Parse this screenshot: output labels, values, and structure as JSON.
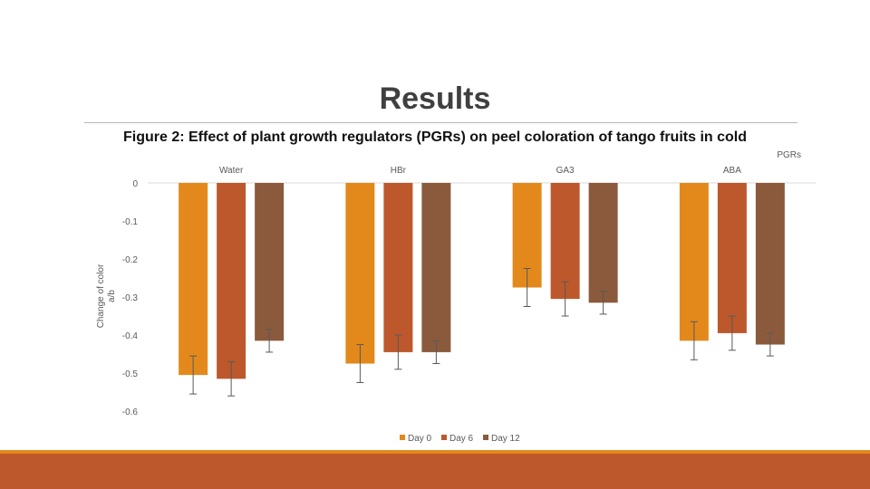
{
  "slide": {
    "title": "Results",
    "caption": "Figure 2: Effect of plant growth regulators (PGRs) on peel coloration of tango fruits in cold"
  },
  "chart_data": {
    "type": "bar",
    "title": "",
    "xlabel": "PGRs",
    "ylabel": "Change of color a/b",
    "ylabel_lines": [
      "Change of color",
      "a/b"
    ],
    "ylim": [
      -0.6,
      0
    ],
    "yticks": [
      0,
      -0.1,
      -0.2,
      -0.3,
      -0.4,
      -0.5,
      -0.6
    ],
    "ytick_labels": [
      "0",
      "-0.1",
      "-0.2",
      "-0.3",
      "-0.4",
      "-0.5",
      "-0.6"
    ],
    "x_axis_position": "top",
    "grid": false,
    "legend_position": "bottom",
    "categories": [
      "Water",
      "HBr",
      "GA3",
      "ABA"
    ],
    "series": [
      {
        "name": "Day 0",
        "color": "#e3891c",
        "values": [
          -0.505,
          -0.475,
          -0.275,
          -0.415
        ],
        "errors": [
          0.05,
          0.05,
          0.05,
          0.05
        ]
      },
      {
        "name": "Day 6",
        "color": "#bd582c",
        "values": [
          -0.515,
          -0.445,
          -0.305,
          -0.395
        ],
        "errors": [
          0.045,
          0.045,
          0.045,
          0.045
        ]
      },
      {
        "name": "Day 12",
        "color": "#8b5a3c",
        "values": [
          -0.415,
          -0.445,
          -0.315,
          -0.425
        ],
        "errors": [
          0.03,
          0.03,
          0.03,
          0.03
        ]
      }
    ]
  }
}
